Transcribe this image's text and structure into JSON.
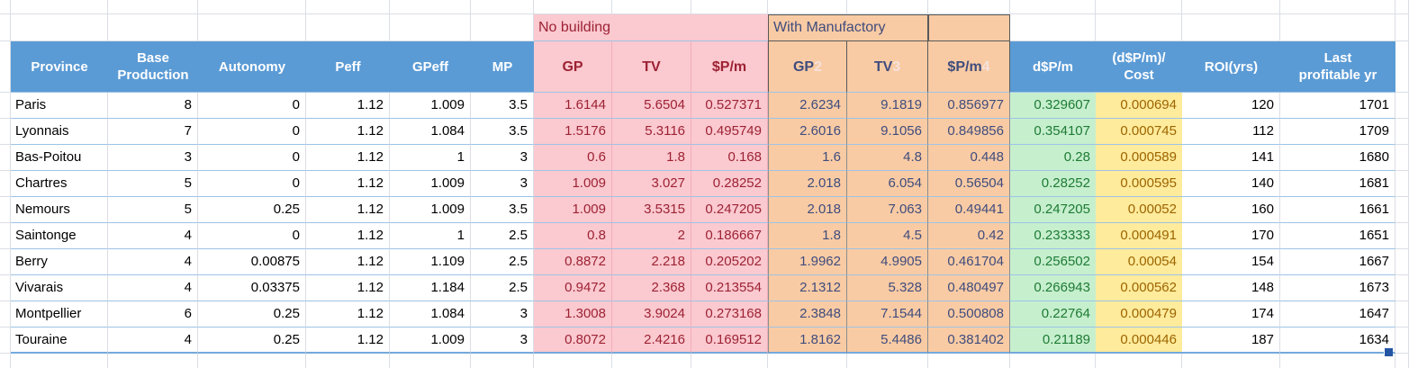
{
  "group_headers": {
    "no_building": {
      "label": "No building"
    },
    "with_manufactory": {
      "label": "With Manufactory"
    }
  },
  "header": {
    "left": [
      {
        "lines": [
          "Province"
        ]
      },
      {
        "lines": [
          "Base",
          "Production"
        ]
      },
      {
        "lines": [
          "Autonomy"
        ]
      },
      {
        "lines": [
          "Peff"
        ]
      },
      {
        "lines": [
          "GPeff"
        ]
      },
      {
        "lines": [
          "MP"
        ]
      }
    ],
    "no_building_cols": [
      {
        "label": "GP"
      },
      {
        "label": "TV"
      },
      {
        "label": "$P/m"
      }
    ],
    "manufactory_cols": [
      {
        "label": "GP",
        "ghost": "2"
      },
      {
        "label": "TV",
        "ghost": "3"
      },
      {
        "label": "$P/m",
        "ghost": "4"
      }
    ],
    "right": [
      {
        "lines": [
          "d$P/m"
        ]
      },
      {
        "lines": [
          "(d$P/m)/",
          "Cost"
        ]
      },
      {
        "lines": [
          "ROI(yrs)"
        ]
      },
      {
        "lines": [
          "Last",
          "profitable yr"
        ]
      }
    ]
  },
  "rows": [
    {
      "province": "Paris",
      "base": "8",
      "autonomy": "0",
      "peff": "1.12",
      "gpeff": "1.009",
      "mp": "3.5",
      "nb_gp": "1.6144",
      "nb_tv": "5.6504",
      "nb_pm": "0.527371",
      "mf_gp": "2.6234",
      "mf_tv": "9.1819",
      "mf_pm": "0.856977",
      "d_pm": "0.329607",
      "d_pm_cost": "0.000694",
      "roi": "120",
      "last_yr": "1701"
    },
    {
      "province": "Lyonnais",
      "base": "7",
      "autonomy": "0",
      "peff": "1.12",
      "gpeff": "1.084",
      "mp": "3.5",
      "nb_gp": "1.5176",
      "nb_tv": "5.3116",
      "nb_pm": "0.495749",
      "mf_gp": "2.6016",
      "mf_tv": "9.1056",
      "mf_pm": "0.849856",
      "d_pm": "0.354107",
      "d_pm_cost": "0.000745",
      "roi": "112",
      "last_yr": "1709"
    },
    {
      "province": "Bas-Poitou",
      "base": "3",
      "autonomy": "0",
      "peff": "1.12",
      "gpeff": "1",
      "mp": "3",
      "nb_gp": "0.6",
      "nb_tv": "1.8",
      "nb_pm": "0.168",
      "mf_gp": "1.6",
      "mf_tv": "4.8",
      "mf_pm": "0.448",
      "d_pm": "0.28",
      "d_pm_cost": "0.000589",
      "roi": "141",
      "last_yr": "1680"
    },
    {
      "province": "Chartres",
      "base": "5",
      "autonomy": "0",
      "peff": "1.12",
      "gpeff": "1.009",
      "mp": "3",
      "nb_gp": "1.009",
      "nb_tv": "3.027",
      "nb_pm": "0.28252",
      "mf_gp": "2.018",
      "mf_tv": "6.054",
      "mf_pm": "0.56504",
      "d_pm": "0.28252",
      "d_pm_cost": "0.000595",
      "roi": "140",
      "last_yr": "1681"
    },
    {
      "province": "Nemours",
      "base": "5",
      "autonomy": "0.25",
      "peff": "1.12",
      "gpeff": "1.009",
      "mp": "3.5",
      "nb_gp": "1.009",
      "nb_tv": "3.5315",
      "nb_pm": "0.247205",
      "mf_gp": "2.018",
      "mf_tv": "7.063",
      "mf_pm": "0.49441",
      "d_pm": "0.247205",
      "d_pm_cost": "0.00052",
      "roi": "160",
      "last_yr": "1661"
    },
    {
      "province": "Saintonge",
      "base": "4",
      "autonomy": "0",
      "peff": "1.12",
      "gpeff": "1",
      "mp": "2.5",
      "nb_gp": "0.8",
      "nb_tv": "2",
      "nb_pm": "0.186667",
      "mf_gp": "1.8",
      "mf_tv": "4.5",
      "mf_pm": "0.42",
      "d_pm": "0.233333",
      "d_pm_cost": "0.000491",
      "roi": "170",
      "last_yr": "1651"
    },
    {
      "province": "Berry",
      "base": "4",
      "autonomy": "0.00875",
      "peff": "1.12",
      "gpeff": "1.109",
      "mp": "2.5",
      "nb_gp": "0.8872",
      "nb_tv": "2.218",
      "nb_pm": "0.205202",
      "mf_gp": "1.9962",
      "mf_tv": "4.9905",
      "mf_pm": "0.461704",
      "d_pm": "0.256502",
      "d_pm_cost": "0.00054",
      "roi": "154",
      "last_yr": "1667"
    },
    {
      "province": "Vivarais",
      "base": "4",
      "autonomy": "0.03375",
      "peff": "1.12",
      "gpeff": "1.184",
      "mp": "2.5",
      "nb_gp": "0.9472",
      "nb_tv": "2.368",
      "nb_pm": "0.213554",
      "mf_gp": "2.1312",
      "mf_tv": "5.328",
      "mf_pm": "0.480497",
      "d_pm": "0.266943",
      "d_pm_cost": "0.000562",
      "roi": "148",
      "last_yr": "1673"
    },
    {
      "province": "Montpellier",
      "base": "6",
      "autonomy": "0.25",
      "peff": "1.12",
      "gpeff": "1.084",
      "mp": "3",
      "nb_gp": "1.3008",
      "nb_tv": "3.9024",
      "nb_pm": "0.273168",
      "mf_gp": "2.3848",
      "mf_tv": "7.1544",
      "mf_pm": "0.500808",
      "d_pm": "0.22764",
      "d_pm_cost": "0.000479",
      "roi": "174",
      "last_yr": "1647"
    },
    {
      "province": "Touraine",
      "base": "4",
      "autonomy": "0.25",
      "peff": "1.12",
      "gpeff": "1.009",
      "mp": "3",
      "nb_gp": "0.8072",
      "nb_tv": "2.4216",
      "nb_pm": "0.169512",
      "mf_gp": "1.8162",
      "mf_tv": "5.4486",
      "mf_pm": "0.381402",
      "d_pm": "0.21189",
      "d_pm_cost": "0.000446",
      "roi": "187",
      "last_yr": "1634"
    }
  ],
  "colors": {
    "header_bg": "#5B9BD5",
    "bad_bg": "#FBC9D0",
    "bad_text": "#9C2233",
    "orange_bg": "#F9CBA4",
    "orange_text": "#3F4C7D",
    "good_bg": "#C6EFCE",
    "good_text": "#1E7B34",
    "neutral_bg": "#FFEB9C",
    "neutral_text": "#9C6500",
    "grid_line": "#DADEE5",
    "row_line": "#9DC3E6",
    "table_bottom": "#74A9DB",
    "dark_border": "#595959",
    "ghost_text": "#F5E2DC",
    "handle": "#2456A4"
  }
}
